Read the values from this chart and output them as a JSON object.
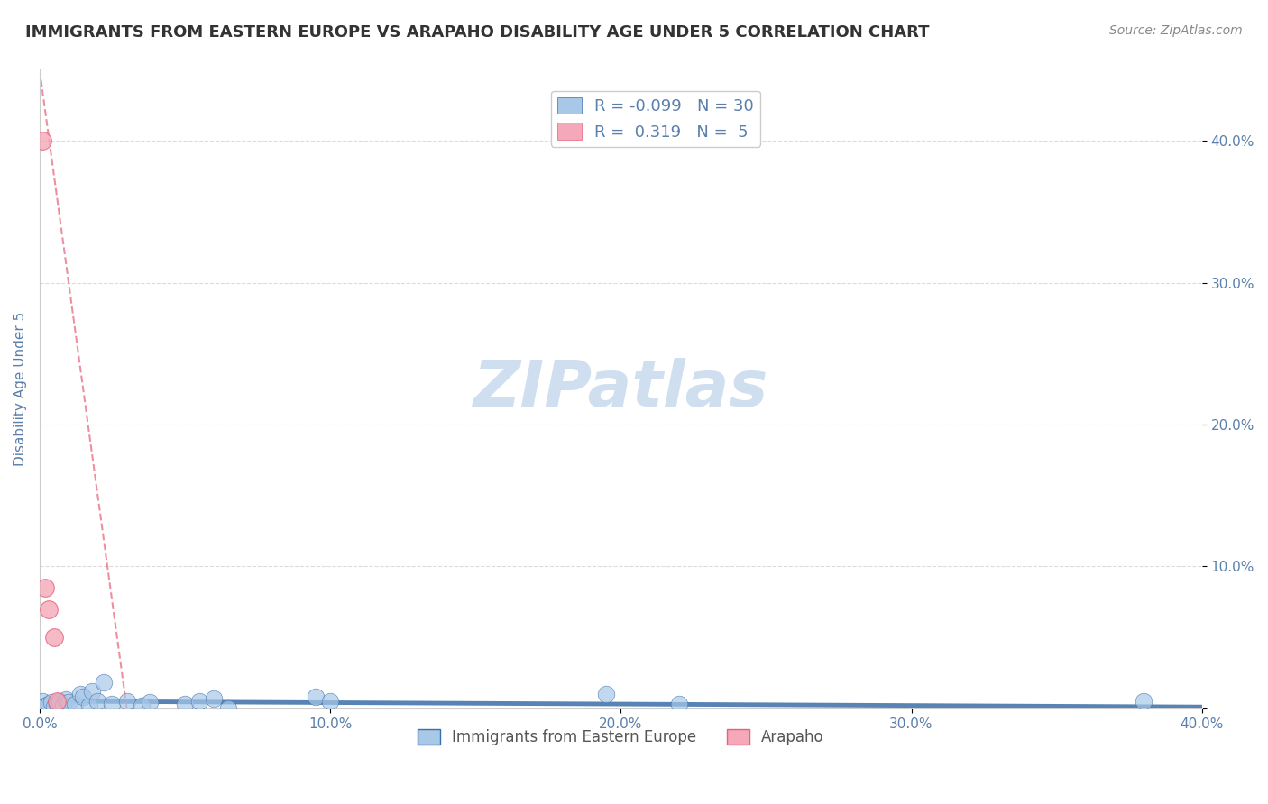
{
  "title": "IMMIGRANTS FROM EASTERN EUROPE VS ARAPAHO DISABILITY AGE UNDER 5 CORRELATION CHART",
  "source": "Source: ZipAtlas.com",
  "xlabel": "",
  "ylabel": "Disability Age Under 5",
  "xlim": [
    0.0,
    0.4
  ],
  "ylim": [
    0.0,
    0.45
  ],
  "xticks": [
    0.0,
    0.1,
    0.2,
    0.3,
    0.4
  ],
  "yticks": [
    0.0,
    0.1,
    0.2,
    0.3,
    0.4
  ],
  "xtick_labels": [
    "0.0%",
    "10.0%",
    "20.0%",
    "30.0%",
    "40.0%"
  ],
  "ytick_labels": [
    "",
    "10.0%",
    "20.0%",
    "30.0%",
    "40.0%"
  ],
  "series1_name": "Immigrants from Eastern Europe",
  "series1_R": -0.099,
  "series1_N": 30,
  "series1_color": "#a8c8e8",
  "series1_line_color": "#3a6fa8",
  "series2_name": "Arapaho",
  "series2_R": 0.319,
  "series2_N": 5,
  "series2_color": "#f4a8b8",
  "series2_line_color": "#e8607a",
  "background_color": "#ffffff",
  "grid_color": "#cccccc",
  "title_color": "#333333",
  "axis_label_color": "#5a7faa",
  "tick_label_color": "#5a7faa",
  "watermark_text": "ZIPatlas",
  "watermark_color": "#d0dff0",
  "blue_scatter_x": [
    0.001,
    0.002,
    0.003,
    0.004,
    0.005,
    0.006,
    0.007,
    0.008,
    0.009,
    0.01,
    0.012,
    0.014,
    0.015,
    0.017,
    0.018,
    0.02,
    0.022,
    0.025,
    0.03,
    0.035,
    0.038,
    0.05,
    0.055,
    0.06,
    0.065,
    0.095,
    0.1,
    0.195,
    0.22,
    0.38
  ],
  "blue_scatter_y": [
    0.005,
    0.002,
    0.003,
    0.004,
    0.001,
    0.003,
    0.005,
    0.002,
    0.006,
    0.004,
    0.003,
    0.01,
    0.008,
    0.002,
    0.012,
    0.005,
    0.018,
    0.003,
    0.005,
    0.002,
    0.004,
    0.003,
    0.005,
    0.007,
    0.0,
    0.008,
    0.005,
    0.01,
    0.003,
    0.005
  ],
  "pink_scatter_x": [
    0.001,
    0.002,
    0.003,
    0.005,
    0.006
  ],
  "pink_scatter_y": [
    0.4,
    0.085,
    0.07,
    0.05,
    0.005
  ]
}
